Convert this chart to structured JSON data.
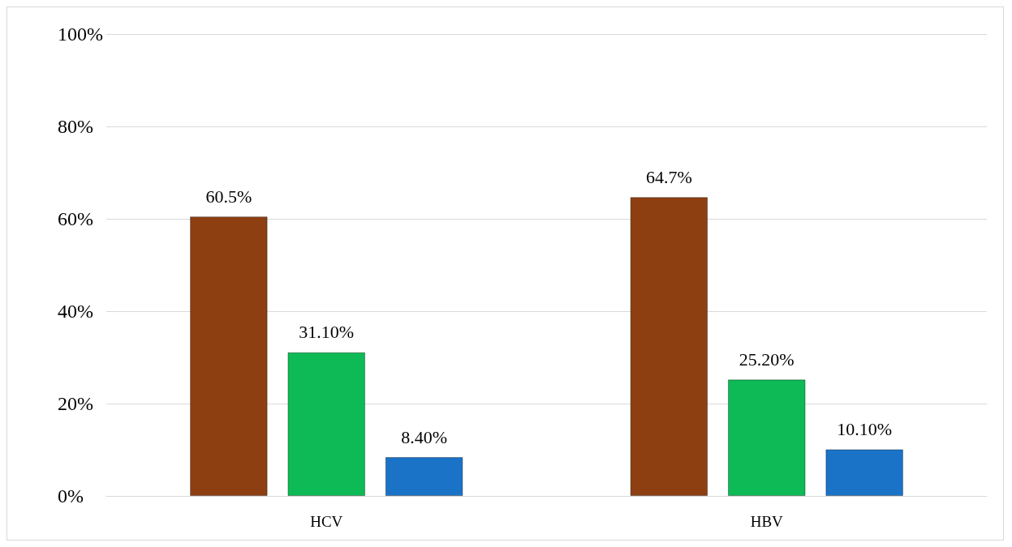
{
  "chart_data": {
    "type": "bar",
    "categories": [
      "HCV",
      "HBV"
    ],
    "series": [
      {
        "color": "#8e3f12",
        "values": [
          60.5,
          64.7
        ],
        "value_labels": [
          "60.5%",
          "64.7%"
        ]
      },
      {
        "color": "#0dba55",
        "values": [
          31.1,
          25.2
        ],
        "value_labels": [
          "31.10%",
          "25.20%"
        ]
      },
      {
        "color": "#1a73c7",
        "values": [
          8.4,
          10.1
        ],
        "value_labels": [
          "8.40%",
          "10.10%"
        ]
      }
    ],
    "ylim": [
      0,
      100
    ],
    "yticks": [
      {
        "value": 0,
        "label": "0%"
      },
      {
        "value": 20,
        "label": "20%"
      },
      {
        "value": 40,
        "label": "40%"
      },
      {
        "value": 60,
        "label": "60%"
      },
      {
        "value": 80,
        "label": "80%"
      },
      {
        "value": 100,
        "label": "100%"
      }
    ],
    "grid": "y"
  }
}
